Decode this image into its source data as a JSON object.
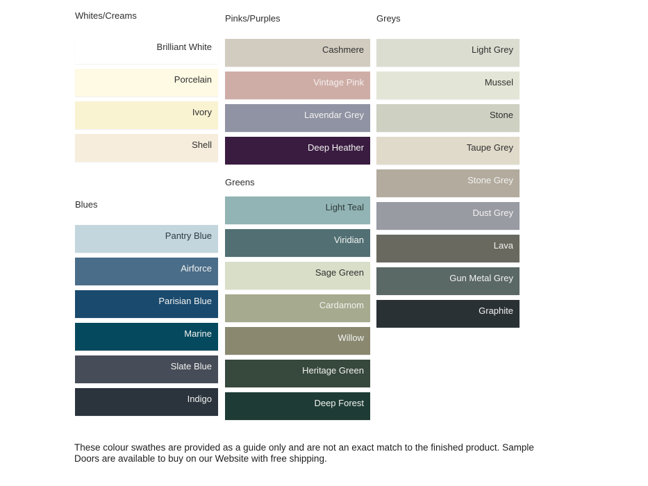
{
  "page": {
    "background": "#ffffff",
    "dark_label_color": "#303030",
    "light_label_color": "#f2f2f0"
  },
  "groups": [
    {
      "heading": "Whites/Creams",
      "column": 1,
      "swatches": [
        {
          "name": "Brilliant White",
          "color": "#ffffff",
          "label_color": "#303030"
        },
        {
          "name": "Porcelain",
          "color": "#fefae3",
          "label_color": "#303030"
        },
        {
          "name": "Ivory",
          "color": "#faf3d2",
          "label_color": "#303030"
        },
        {
          "name": "Shell",
          "color": "#f7eddc",
          "label_color": "#303030"
        }
      ]
    },
    {
      "heading": "Blues",
      "column": 1,
      "swatches": [
        {
          "name": "Pantry Blue",
          "color": "#c3d6dd",
          "label_color": "#2f3b44"
        },
        {
          "name": "Airforce",
          "color": "#4a6d89",
          "label_color": "#f2f2f0"
        },
        {
          "name": "Parisian Blue",
          "color": "#1a4a6e",
          "label_color": "#f2f2f0"
        },
        {
          "name": "Marine",
          "color": "#05495e",
          "label_color": "#f2f2f0"
        },
        {
          "name": "Slate Blue",
          "color": "#464c58",
          "label_color": "#f2f2f0"
        },
        {
          "name": "Indigo",
          "color": "#2b333d",
          "label_color": "#f2f2f0"
        }
      ]
    },
    {
      "heading": "Pinks/Purples",
      "column": 2,
      "swatches": [
        {
          "name": "Cashmere",
          "color": "#d2ccc0",
          "label_color": "#303030"
        },
        {
          "name": "Vintage Pink",
          "color": "#cfada7",
          "label_color": "#f5f0ee"
        },
        {
          "name": "Lavendar Grey",
          "color": "#8f93a3",
          "label_color": "#f2f2f0"
        },
        {
          "name": "Deep Heather",
          "color": "#3a1c41",
          "label_color": "#f2f2f0"
        }
      ]
    },
    {
      "heading": "Greens",
      "column": 2,
      "swatches": [
        {
          "name": "Light Teal",
          "color": "#92b4b4",
          "label_color": "#2f3b3b"
        },
        {
          "name": "Viridian",
          "color": "#527074",
          "label_color": "#f2f2f0"
        },
        {
          "name": "Sage Green",
          "color": "#d9dec8",
          "label_color": "#303030"
        },
        {
          "name": "Cardamom",
          "color": "#a6aa8e",
          "label_color": "#f2f2f0"
        },
        {
          "name": "Willow",
          "color": "#8a8970",
          "label_color": "#f2f2f0"
        },
        {
          "name": "Heritage Green",
          "color": "#37483d",
          "label_color": "#f2f2f0"
        },
        {
          "name": "Deep Forest",
          "color": "#1e3c35",
          "label_color": "#f2f2f0"
        }
      ]
    },
    {
      "heading": "Greys",
      "column": 3,
      "swatches": [
        {
          "name": "Light Grey",
          "color": "#dcddd1",
          "label_color": "#303030"
        },
        {
          "name": "Mussel",
          "color": "#e3e6d6",
          "label_color": "#303030"
        },
        {
          "name": "Stone",
          "color": "#ced1c2",
          "label_color": "#303030"
        },
        {
          "name": "Taupe Grey",
          "color": "#e0daca",
          "label_color": "#303030"
        },
        {
          "name": "Stone Grey",
          "color": "#b2ab9e",
          "label_color": "#f2f2f0"
        },
        {
          "name": "Dust Grey",
          "color": "#999ba3",
          "label_color": "#f2f2f0"
        },
        {
          "name": "Lava",
          "color": "#6a695f",
          "label_color": "#f2f2f0"
        },
        {
          "name": "Gun Metal Grey",
          "color": "#5a6866",
          "label_color": "#f2f2f0"
        },
        {
          "name": "Graphite",
          "color": "#2a3134",
          "label_color": "#f2f2f0"
        }
      ]
    }
  ],
  "footer": {
    "line1": "These colour swathes are provided as a guide only and are not an exact match to the finished product.  Sample",
    "line2": "Doors are available to buy on our Website with free shipping."
  }
}
